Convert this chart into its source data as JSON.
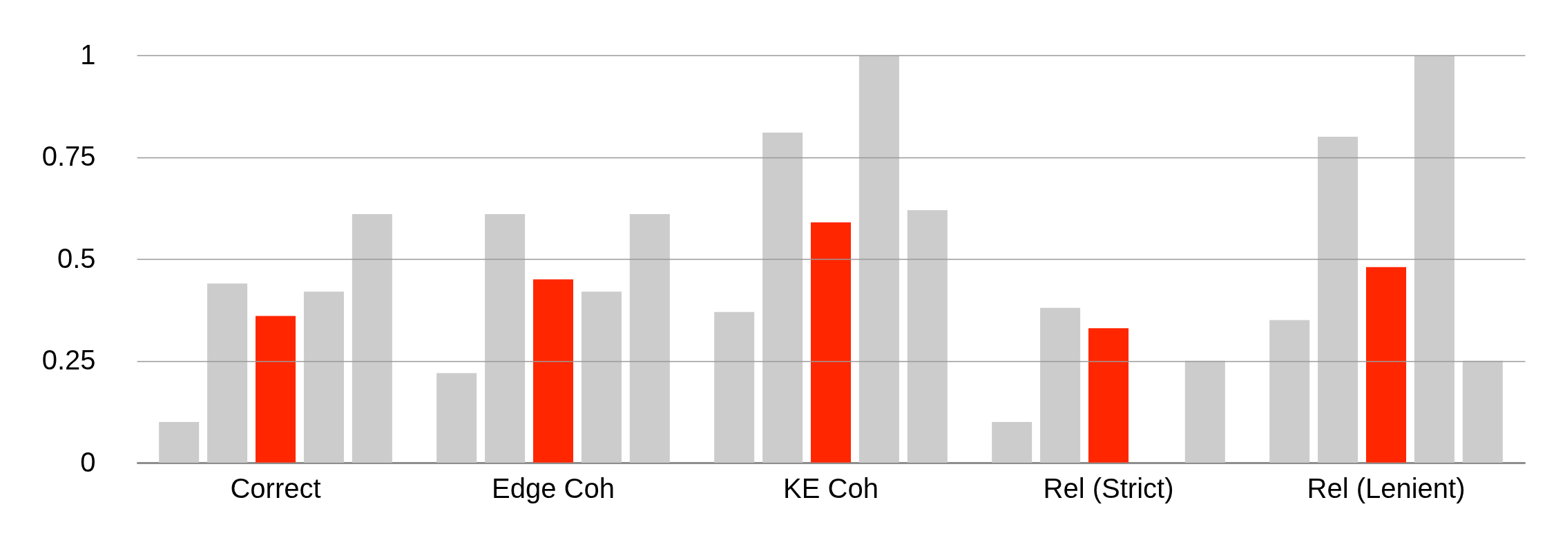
{
  "chart_data": {
    "type": "bar",
    "categories": [
      "Correct",
      "Edge Coh",
      "KE Coh",
      "Rel (Strict)",
      "Rel (Lenient)"
    ],
    "series": [
      {
        "color": "#cccccc",
        "values": [
          0.1,
          0.22,
          0.37,
          0.1,
          0.35
        ]
      },
      {
        "color": "#cccccc",
        "values": [
          0.44,
          0.61,
          0.81,
          0.38,
          0.8
        ]
      },
      {
        "color": "#ff2600",
        "values": [
          0.36,
          0.45,
          0.59,
          0.33,
          0.48
        ]
      },
      {
        "color": "#cccccc",
        "values": [
          0.42,
          0.42,
          1,
          null,
          1
        ]
      },
      {
        "color": "#cccccc",
        "values": [
          0.61,
          0.61,
          0.62,
          0.25,
          0.25
        ]
      }
    ],
    "ylim": [
      0,
      1
    ],
    "yticks": [
      0,
      0.25,
      0.5,
      0.75,
      1
    ],
    "grid": "y",
    "legend": false
  }
}
